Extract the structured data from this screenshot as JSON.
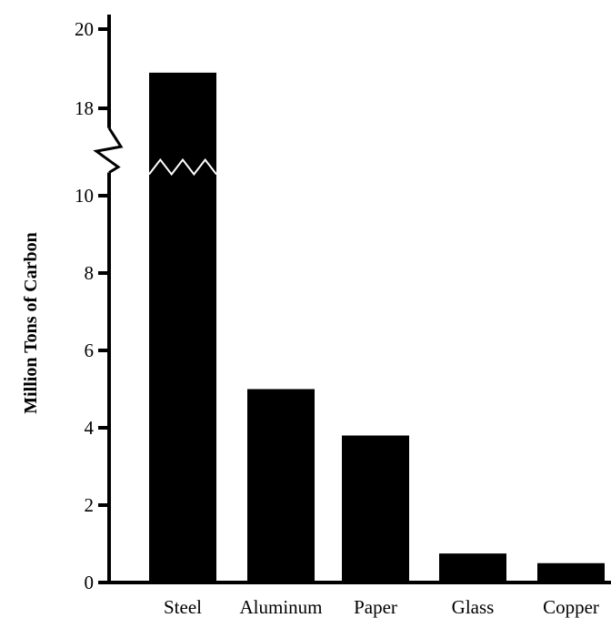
{
  "chart_data": {
    "type": "bar",
    "title": "",
    "xlabel": "",
    "ylabel": "Million Tons of Carbon",
    "categories": [
      "Steel",
      "Aluminum",
      "Paper",
      "Glass",
      "Copper"
    ],
    "values": [
      18.9,
      5.0,
      3.8,
      0.75,
      0.5
    ],
    "ylim": [
      0,
      20
    ],
    "axis_break": {
      "lower": 10.6,
      "upper": 17.5
    },
    "yticks": [
      0,
      2,
      4,
      6,
      8,
      10,
      18,
      20
    ],
    "ytick_labels": [
      "0",
      "2",
      "4",
      "6",
      "8",
      "10",
      "18",
      "20"
    ],
    "grid": false,
    "bar_color": "#000000"
  }
}
